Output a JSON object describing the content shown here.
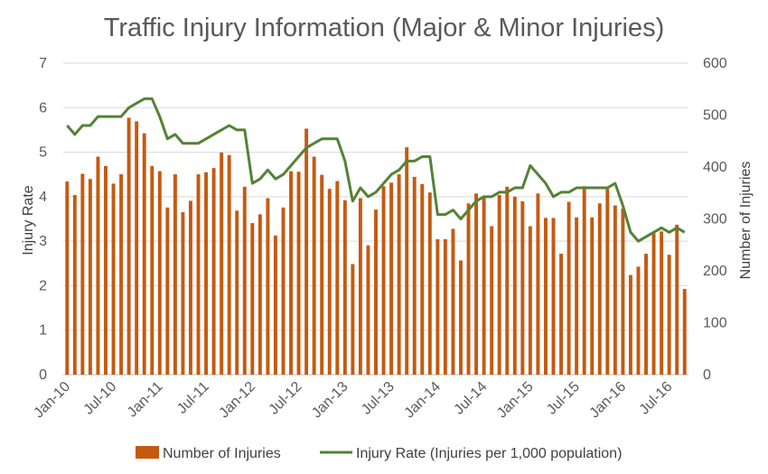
{
  "chart_data": {
    "type": "bar+line",
    "title": "Traffic Injury Information (Major & Minor Injuries)",
    "y_left_label": "Injury Rate",
    "y_right_label": "Number of Injuries",
    "y_left_range": [
      0,
      7
    ],
    "y_right_range": [
      0,
      600
    ],
    "y_left_ticks": [
      "0",
      "1",
      "2",
      "3",
      "4",
      "5",
      "6",
      "7"
    ],
    "y_right_ticks": [
      "0",
      "100",
      "200",
      "300",
      "400",
      "500",
      "600"
    ],
    "x_tick_labels": [
      "Jan-10",
      "Jul-10",
      "Jan-11",
      "Jul-11",
      "Jan-12",
      "Jul-12",
      "Jan-13",
      "Jul-13",
      "Jan-14",
      "Jul-14",
      "Jan-15",
      "Jul-15",
      "Jan-16",
      "Jul-16"
    ],
    "gridlines": true,
    "legend_position": "bottom",
    "categories": [
      "Jan-10",
      "Feb-10",
      "Mar-10",
      "Apr-10",
      "May-10",
      "Jun-10",
      "Jul-10",
      "Aug-10",
      "Sep-10",
      "Oct-10",
      "Nov-10",
      "Dec-10",
      "Jan-11",
      "Feb-11",
      "Mar-11",
      "Apr-11",
      "May-11",
      "Jun-11",
      "Jul-11",
      "Aug-11",
      "Sep-11",
      "Oct-11",
      "Nov-11",
      "Dec-11",
      "Jan-12",
      "Feb-12",
      "Mar-12",
      "Apr-12",
      "May-12",
      "Jun-12",
      "Jul-12",
      "Aug-12",
      "Sep-12",
      "Oct-12",
      "Nov-12",
      "Dec-12",
      "Jan-13",
      "Feb-13",
      "Mar-13",
      "Apr-13",
      "May-13",
      "Jun-13",
      "Jul-13",
      "Aug-13",
      "Sep-13",
      "Oct-13",
      "Nov-13",
      "Dec-13",
      "Jan-14",
      "Feb-14",
      "Mar-14",
      "Apr-14",
      "May-14",
      "Jun-14",
      "Jul-14",
      "Aug-14",
      "Sep-14",
      "Oct-14",
      "Nov-14",
      "Dec-14",
      "Jan-15",
      "Feb-15",
      "Mar-15",
      "Apr-15",
      "May-15",
      "Jun-15",
      "Jul-15",
      "Aug-15",
      "Sep-15",
      "Oct-15",
      "Nov-15",
      "Dec-15",
      "Jan-16",
      "Feb-16",
      "Mar-16",
      "Apr-16",
      "May-16",
      "Jun-16",
      "Jul-16",
      "Aug-16",
      "Sep-16"
    ],
    "series": [
      {
        "name": "Number of Injuries",
        "type": "bar",
        "axis": "right",
        "color": "#C55A11",
        "values": [
          372,
          346,
          387,
          377,
          420,
          402,
          368,
          386,
          495,
          488,
          465,
          402,
          392,
          322,
          386,
          313,
          335,
          386,
          390,
          398,
          428,
          423,
          316,
          362,
          292,
          309,
          340,
          268,
          322,
          392,
          391,
          474,
          420,
          385,
          358,
          373,
          336,
          213,
          340,
          249,
          318,
          363,
          370,
          386,
          438,
          381,
          367,
          351,
          261,
          261,
          281,
          220,
          330,
          349,
          341,
          286,
          346,
          362,
          343,
          334,
          286,
          349,
          302,
          302,
          233,
          333,
          303,
          363,
          303,
          330,
          358,
          326,
          320,
          192,
          208,
          233,
          272,
          276,
          231,
          289,
          165
        ]
      },
      {
        "name": "Injury Rate (Injuries per 1,000 population)",
        "type": "line",
        "axis": "left",
        "color": "#548235",
        "values": [
          5.6,
          5.4,
          5.6,
          5.6,
          5.8,
          5.8,
          5.8,
          5.8,
          6.0,
          6.1,
          6.2,
          6.2,
          5.8,
          5.3,
          5.4,
          5.2,
          5.2,
          5.2,
          5.3,
          5.4,
          5.5,
          5.6,
          5.5,
          5.5,
          4.3,
          4.4,
          4.6,
          4.4,
          4.5,
          4.7,
          4.9,
          5.1,
          5.2,
          5.3,
          5.3,
          5.3,
          4.8,
          3.9,
          4.2,
          4.0,
          4.1,
          4.3,
          4.5,
          4.6,
          4.8,
          4.8,
          4.9,
          4.9,
          3.6,
          3.6,
          3.7,
          3.5,
          3.7,
          3.9,
          4.0,
          4.0,
          4.1,
          4.1,
          4.2,
          4.2,
          4.7,
          4.5,
          4.3,
          4.0,
          4.1,
          4.1,
          4.2,
          4.2,
          4.2,
          4.2,
          4.2,
          4.3,
          3.8,
          3.2,
          3.0,
          3.1,
          3.2,
          3.3,
          3.2,
          3.3,
          3.2
        ]
      }
    ]
  }
}
